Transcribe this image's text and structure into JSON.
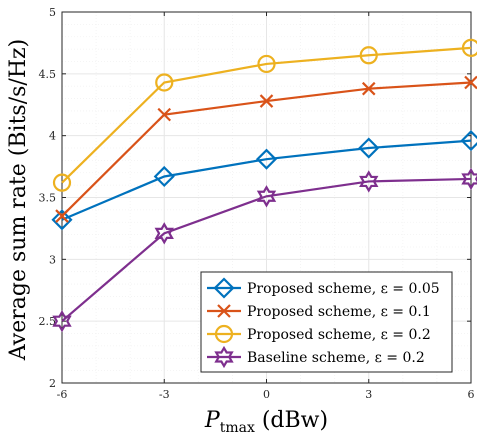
{
  "chart_data": {
    "type": "line",
    "xlabel_main": "P",
    "xlabel_sub": "tmax",
    "xlabel_unit": " (dBw)",
    "ylabel": "Average sum rate (Bits/s/Hz)",
    "x": [
      -6,
      -3,
      0,
      3,
      6
    ],
    "x_tick_labels": [
      "-6",
      "-3",
      "0",
      "3",
      "6"
    ],
    "y_tick_labels": [
      "2",
      "2.5",
      "3",
      "3.5",
      "4",
      "4.5",
      "5"
    ],
    "xlim": [
      -6,
      6
    ],
    "ylim": [
      2,
      5
    ],
    "grid": true,
    "legend_position": "bottom-right",
    "series": [
      {
        "name": "Proposed scheme, ε = 0.05",
        "values": [
          3.32,
          3.67,
          3.81,
          3.9,
          3.96
        ],
        "color": "#0072BD",
        "marker": "diamond"
      },
      {
        "name": "Proposed scheme, ε = 0.1",
        "values": [
          3.35,
          4.17,
          4.28,
          4.38,
          4.43
        ],
        "color": "#D95319",
        "marker": "x"
      },
      {
        "name": "Proposed scheme, ε = 0.2",
        "values": [
          3.62,
          4.43,
          4.58,
          4.65,
          4.71
        ],
        "color": "#EDB120",
        "marker": "circle"
      },
      {
        "name": "Baseline scheme, ε = 0.2",
        "values": [
          2.5,
          3.21,
          3.51,
          3.63,
          3.65
        ],
        "color": "#7E2F8E",
        "marker": "hexagram"
      }
    ]
  }
}
